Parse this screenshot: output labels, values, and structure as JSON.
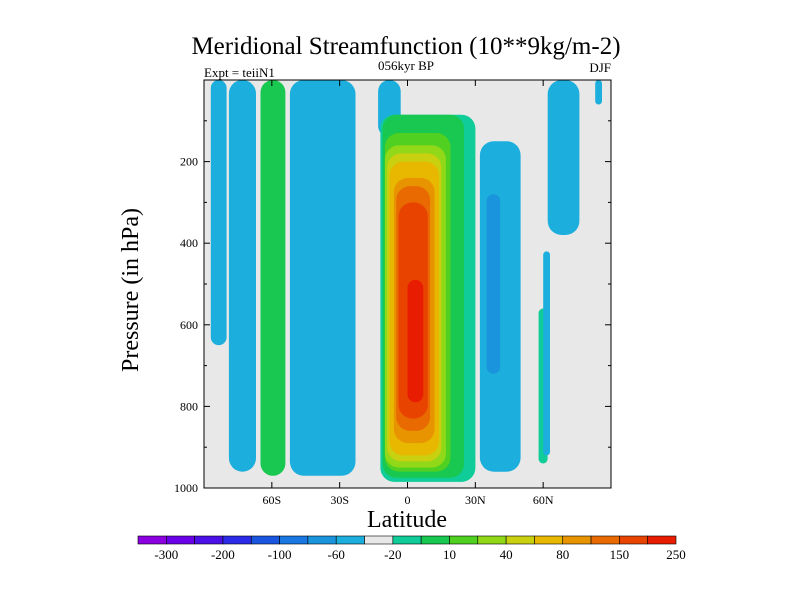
{
  "chart_data": {
    "type": "heatmap",
    "title": "Meridional Streamfunction (10**9kg/m-2)",
    "subtitle_left": "Expt = teiiN1",
    "subtitle_center": "056kyr BP",
    "subtitle_right": "DJF",
    "xlabel": "Latitude",
    "ylabel": "Pressure (in hPa)",
    "xlim": [
      -90,
      90
    ],
    "ylim": [
      1000,
      0
    ],
    "x_ticks": [
      {
        "value": -60,
        "label": "60S"
      },
      {
        "value": -30,
        "label": "30S"
      },
      {
        "value": 0,
        "label": "0"
      },
      {
        "value": 30,
        "label": "30N"
      },
      {
        "value": 60,
        "label": "60N"
      }
    ],
    "y_ticks": [
      {
        "value": 200,
        "label": "200"
      },
      {
        "value": 400,
        "label": "400"
      },
      {
        "value": 600,
        "label": "600"
      },
      {
        "value": 800,
        "label": "800"
      },
      {
        "value": 1000,
        "label": "1000"
      }
    ],
    "background_color": "#e8e8e8",
    "colorbar": {
      "colors": [
        "#8a00e0",
        "#6a00e8",
        "#4b10e8",
        "#2a2ae8",
        "#1a55e0",
        "#1877e0",
        "#1a94dc",
        "#1caedc",
        "#e8e8e8",
        "#10cc98",
        "#18c850",
        "#50d020",
        "#90d818",
        "#c8d010",
        "#e8b800",
        "#e89400",
        "#e86a00",
        "#e84400",
        "#e81c00"
      ],
      "labels": [
        {
          "after": 1,
          "text": "-300"
        },
        {
          "after": 3,
          "text": "-200"
        },
        {
          "after": 5,
          "text": "-100"
        },
        {
          "after": 7,
          "text": "-60"
        },
        {
          "after": 9,
          "text": "-20"
        },
        {
          "after": 11,
          "text": "10"
        },
        {
          "after": 13,
          "text": "40"
        },
        {
          "after": 15,
          "text": "80"
        },
        {
          "after": 17,
          "text": "150"
        },
        {
          "after": 19,
          "text": "250"
        }
      ]
    },
    "regions": [
      {
        "name": "far-south-negative-band",
        "level": 7,
        "lat": [
          -87,
          -80
        ],
        "top": 0,
        "bottom": 650
      },
      {
        "name": "southern-negative-cell",
        "level": 7,
        "lat": [
          -79,
          -67
        ],
        "top": 0,
        "bottom": 960
      },
      {
        "name": "southern-positive-cell",
        "level": 10,
        "lat": [
          -65,
          -54
        ],
        "top": 0,
        "bottom": 970
      },
      {
        "name": "midlat-negative-cell",
        "level": 7,
        "lat": [
          -52,
          -23
        ],
        "top": 0,
        "bottom": 970
      },
      {
        "name": "upper-negative-tongue",
        "level": 7,
        "lat": [
          -13,
          -3
        ],
        "top": 0,
        "bottom": 140
      },
      {
        "name": "tropical-positive-cell-outer",
        "level": 9,
        "lat": [
          -12,
          30
        ],
        "top": 85,
        "bottom": 985
      },
      {
        "name": "tropical-positive-cell-l10",
        "level": 10,
        "lat": [
          -11,
          25
        ],
        "top": 85,
        "bottom": 975
      },
      {
        "name": "tropical-positive-cell-l11",
        "level": 11,
        "lat": [
          -10,
          19
        ],
        "top": 130,
        "bottom": 960
      },
      {
        "name": "tropical-positive-cell-l12",
        "level": 12,
        "lat": [
          -10,
          17
        ],
        "top": 160,
        "bottom": 950
      },
      {
        "name": "tropical-positive-cell-l13",
        "level": 13,
        "lat": [
          -9,
          15
        ],
        "top": 180,
        "bottom": 935
      },
      {
        "name": "tropical-positive-cell-l14",
        "level": 14,
        "lat": [
          -8,
          14
        ],
        "top": 200,
        "bottom": 920
      },
      {
        "name": "tropical-positive-cell-l15",
        "level": 15,
        "lat": [
          -6,
          12
        ],
        "top": 240,
        "bottom": 890
      },
      {
        "name": "tropical-positive-cell-l16",
        "level": 16,
        "lat": [
          -5,
          10
        ],
        "top": 260,
        "bottom": 860
      },
      {
        "name": "tropical-positive-cell-l17",
        "level": 17,
        "lat": [
          -4,
          9
        ],
        "top": 300,
        "bottom": 830
      },
      {
        "name": "tropical-positive-cell-core",
        "level": 18,
        "lat": [
          0,
          7
        ],
        "top": 490,
        "bottom": 790
      },
      {
        "name": "northern-negative-cell",
        "level": 7,
        "lat": [
          32,
          50
        ],
        "top": 150,
        "bottom": 960
      },
      {
        "name": "northern-negative-core",
        "level": 6,
        "lat": [
          35,
          41
        ],
        "top": 280,
        "bottom": 720
      },
      {
        "name": "high-north-positive-sliver",
        "level": 9,
        "lat": [
          58,
          62
        ],
        "top": 560,
        "bottom": 940
      },
      {
        "name": "high-north-negative-sliver",
        "level": 7,
        "lat": [
          60,
          63
        ],
        "top": 420,
        "bottom": 920
      },
      {
        "name": "upper-north-negative-tongue",
        "level": 7,
        "lat": [
          62,
          76
        ],
        "top": 0,
        "bottom": 380
      },
      {
        "name": "polar-negative-sliver",
        "level": 7,
        "lat": [
          83,
          86
        ],
        "top": 0,
        "bottom": 60
      }
    ]
  }
}
